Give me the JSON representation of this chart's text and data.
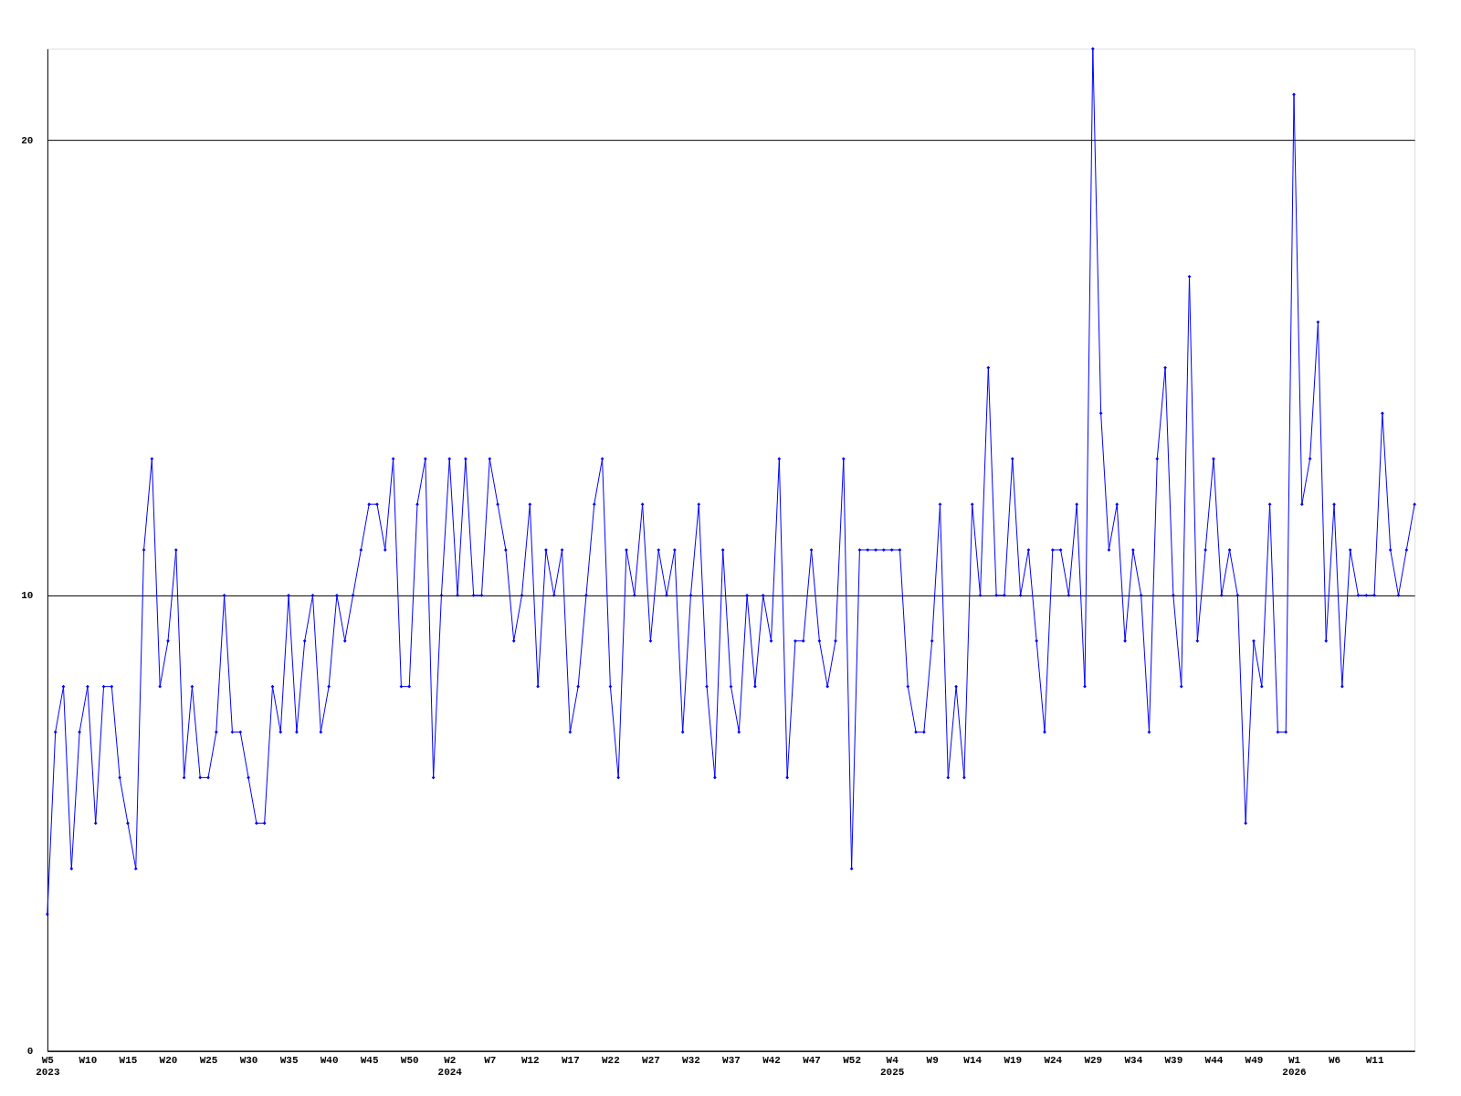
{
  "chart_data": {
    "type": "line",
    "categories": [
      "W5\n2023",
      null,
      null,
      null,
      null,
      "W10",
      null,
      null,
      null,
      null,
      "W15",
      null,
      null,
      null,
      null,
      "W20",
      null,
      null,
      null,
      null,
      "W25",
      null,
      null,
      null,
      null,
      "W30",
      null,
      null,
      null,
      null,
      "W35",
      null,
      null,
      null,
      null,
      "W40",
      null,
      null,
      null,
      null,
      "W45",
      null,
      null,
      null,
      null,
      "W50",
      null,
      null,
      null,
      null,
      "W2\n2024",
      null,
      null,
      null,
      null,
      "W7",
      null,
      null,
      null,
      null,
      "W12",
      null,
      null,
      null,
      null,
      "W17",
      null,
      null,
      null,
      null,
      "W22",
      null,
      null,
      null,
      null,
      "W27",
      null,
      null,
      null,
      null,
      "W32",
      null,
      null,
      null,
      null,
      "W37",
      null,
      null,
      null,
      null,
      "W42",
      null,
      null,
      null,
      null,
      "W47",
      null,
      null,
      null,
      null,
      "W52",
      null,
      null,
      null,
      null,
      "W4\n2025",
      null,
      null,
      null,
      null,
      "W9",
      null,
      null,
      null,
      null,
      "W14",
      null,
      null,
      null,
      null,
      "W19",
      null,
      null,
      null,
      null,
      "W24",
      null,
      null,
      null,
      null,
      "W29",
      null,
      null,
      null,
      null,
      "W34",
      null,
      null,
      null,
      null,
      "W39",
      null,
      null,
      null,
      null,
      "W44",
      null,
      null,
      null,
      null,
      "W49",
      null,
      null,
      null,
      null,
      "W1\n2026",
      null,
      null,
      null,
      null,
      "W6",
      null,
      null,
      null,
      null,
      "W11",
      null,
      null,
      null,
      null,
      null
    ],
    "series": [
      {
        "color": "#0000ff",
        "values": [
          3,
          7,
          8,
          4,
          7,
          8,
          5,
          8,
          8,
          6,
          5,
          4,
          11,
          13,
          8,
          9,
          11,
          6,
          8,
          6,
          6,
          7,
          10,
          7,
          7,
          6,
          5,
          5,
          8,
          7,
          10,
          7,
          9,
          10,
          7,
          8,
          10,
          9,
          10,
          11,
          12,
          12,
          11,
          13,
          8,
          8,
          12,
          13,
          6,
          10,
          13,
          10,
          13,
          10,
          10,
          13,
          12,
          11,
          9,
          10,
          12,
          8,
          11,
          10,
          11,
          7,
          8,
          10,
          12,
          13,
          8,
          6,
          11,
          10,
          12,
          9,
          11,
          10,
          11,
          7,
          10,
          12,
          8,
          6,
          11,
          8,
          7,
          10,
          8,
          10,
          9,
          13,
          6,
          9,
          9,
          11,
          9,
          8,
          9,
          13,
          4,
          11,
          11,
          11,
          11,
          11,
          11,
          8,
          7,
          7,
          9,
          12,
          6,
          8,
          6,
          12,
          10,
          15,
          10,
          10,
          13,
          10,
          11,
          9,
          7,
          11,
          11,
          10,
          12,
          8,
          22,
          14,
          11,
          12,
          9,
          11,
          10,
          7,
          13,
          15,
          10,
          8,
          17,
          9,
          11,
          13,
          10,
          11,
          10,
          5,
          9,
          8,
          12,
          7,
          7,
          21,
          12,
          13,
          16,
          9,
          12,
          8,
          11,
          10,
          10,
          10,
          14,
          11,
          10,
          11,
          12
        ]
      }
    ],
    "ylim": [
      0,
      22
    ],
    "yticks": [
      0,
      10,
      20
    ],
    "grid": "y",
    "legend": false,
    "marker": "diamond",
    "line_style": "solid"
  }
}
